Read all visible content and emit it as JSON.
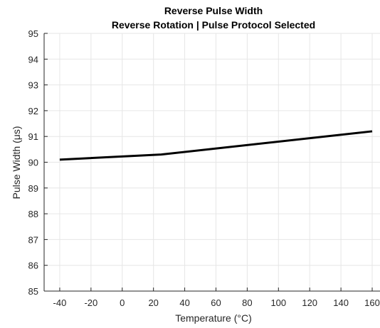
{
  "chart_data": {
    "type": "line",
    "title": "Reverse Pulse Width",
    "subtitle": "Reverse Rotation | Pulse Protocol Selected",
    "xlabel": "Temperature (°C)",
    "ylabel": "Pulse Width (μs)",
    "xlim": [
      -50,
      165
    ],
    "ylim": [
      85,
      95
    ],
    "xticks": [
      -40,
      -20,
      0,
      20,
      40,
      60,
      80,
      100,
      120,
      140,
      160
    ],
    "yticks": [
      85,
      86,
      87,
      88,
      89,
      90,
      91,
      92,
      93,
      94,
      95
    ],
    "grid": true,
    "series": [
      {
        "color": "#000000",
        "x": [
          -40,
          25,
          160
        ],
        "y": [
          90.1,
          90.3,
          91.2
        ]
      }
    ]
  }
}
